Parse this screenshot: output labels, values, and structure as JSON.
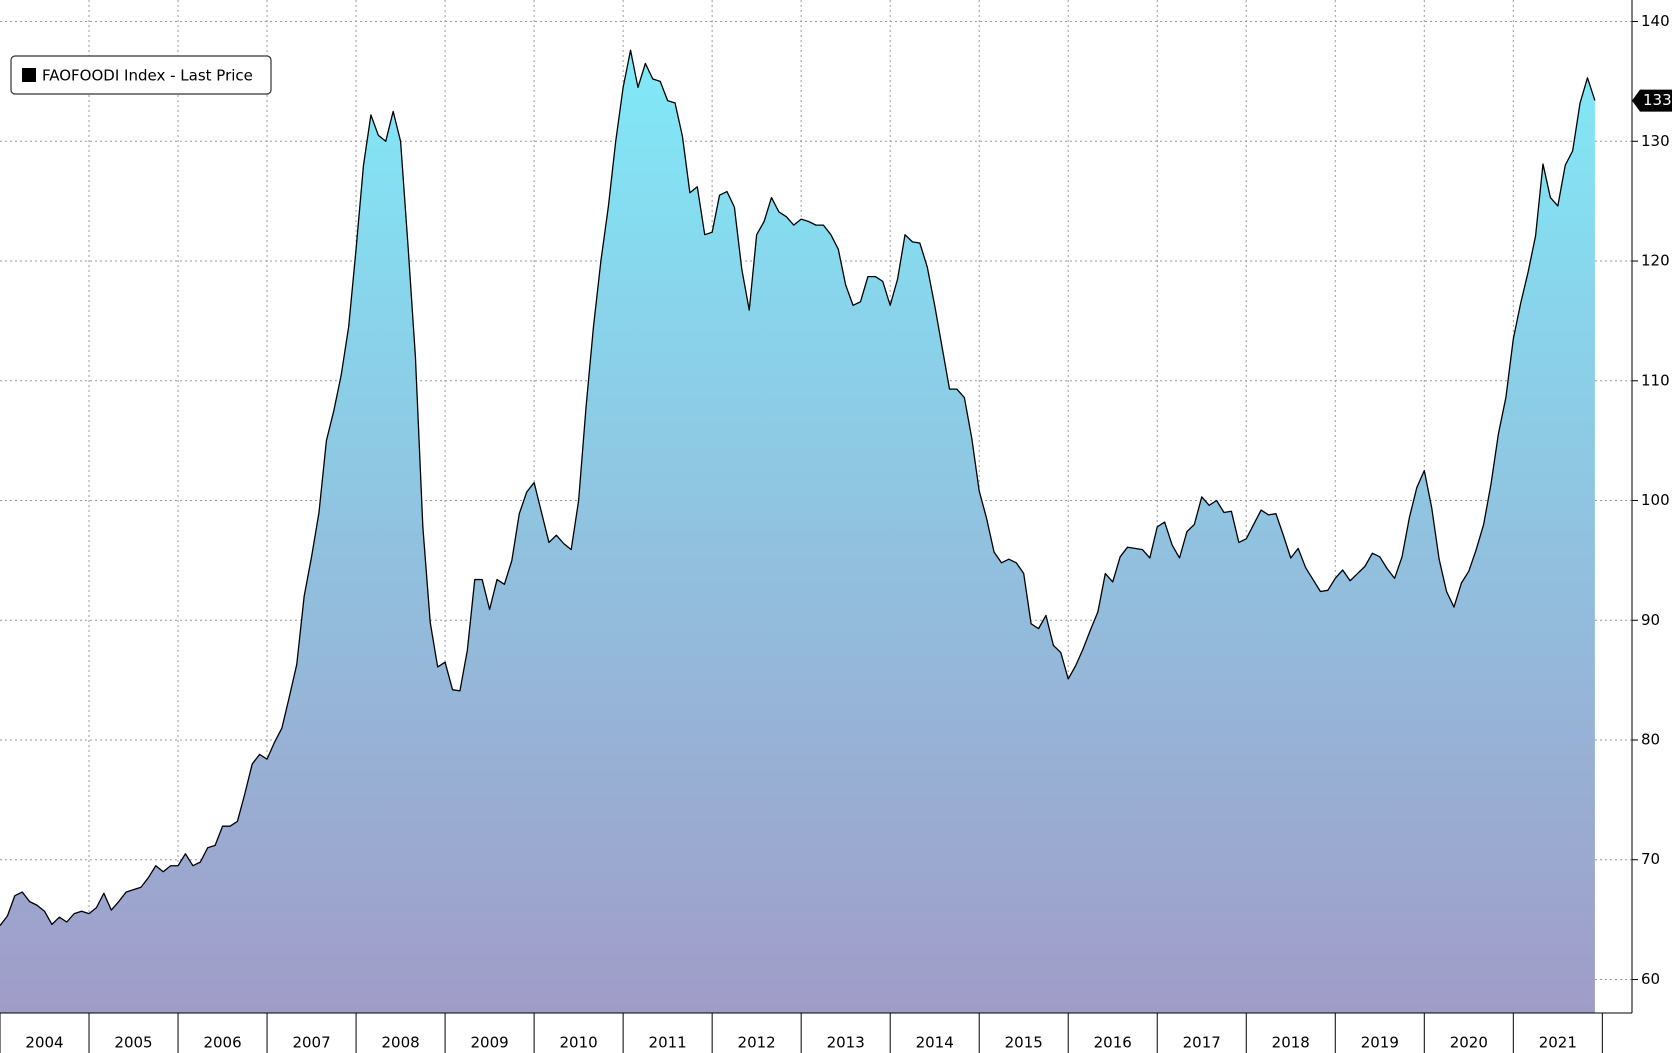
{
  "chart_data": {
    "type": "area",
    "legend": "top-left",
    "grid": true,
    "xlim": [
      "2004-01",
      "2022-05"
    ],
    "ylim": [
      57.2,
      141.8
    ],
    "yticks": [
      60,
      70,
      80,
      90,
      100,
      110,
      120,
      130,
      140
    ],
    "xticks": [
      2004,
      2005,
      2006,
      2007,
      2008,
      2009,
      2010,
      2011,
      2012,
      2013,
      2014,
      2015,
      2016,
      2017,
      2018,
      2019,
      2020,
      2021
    ],
    "last_price_label": "133",
    "start": "2004-01",
    "series": [
      {
        "name": "FAOFOODI Index - Last Price",
        "color": "#000000",
        "fill_top": "#80eaf8",
        "fill_bottom": "#a09cc8",
        "values": [
          64.5,
          65.3,
          67,
          67.3,
          66.5,
          66.2,
          65.7,
          64.6,
          65.2,
          64.8,
          65.5,
          65.7,
          65.5,
          66,
          67.2,
          65.8,
          66.5,
          67.3,
          67.5,
          67.7,
          68.5,
          69.5,
          69,
          69.5,
          69.5,
          70.5,
          69.5,
          69.8,
          71,
          71.2,
          72.8,
          72.8,
          73.2,
          75.5,
          78,
          78.8,
          78.4,
          79.8,
          81,
          83.6,
          86.3,
          92,
          95.3,
          99,
          105,
          107.5,
          110.5,
          114.5,
          121,
          128,
          132.2,
          130.5,
          130,
          132.5,
          130,
          121.3,
          112,
          97.8,
          89.8,
          86.1,
          86.5,
          84.2,
          84.1,
          87.5,
          93.4,
          93.4,
          90.9,
          93.4,
          93,
          95,
          98.9,
          100.7,
          101.5,
          99,
          96.5,
          97.1,
          96.4,
          95.9,
          100,
          107.8,
          114.5,
          120,
          124.5,
          130,
          134.5,
          137.6,
          134.5,
          136.5,
          135.2,
          135,
          133.4,
          133.2,
          130.4,
          125.7,
          126.2,
          122.2,
          122.4,
          125.5,
          125.8,
          124.5,
          119.3,
          115.9,
          122.2,
          123.3,
          125.3,
          124.1,
          123.7,
          123,
          123.5,
          123.3,
          123,
          123,
          122.2,
          121,
          118,
          116.3,
          116.6,
          118.7,
          118.7,
          118.3,
          116.3,
          118.5,
          122.2,
          121.6,
          121.5,
          119.5,
          116.3,
          112.8,
          109.3,
          109.3,
          108.6,
          105.2,
          100.8,
          98.5,
          95.7,
          94.8,
          95.1,
          94.8,
          93.9,
          89.7,
          89.3,
          90.4,
          87.9,
          87.3,
          85.1,
          86.2,
          87.6,
          89.2,
          90.7,
          93.9,
          93.2,
          95.3,
          96.1,
          96,
          95.9,
          95.2,
          97.8,
          98.2,
          96.3,
          95.2,
          97.4,
          98,
          100.3,
          99.6,
          100,
          99,
          99.1,
          96.5,
          96.8,
          98,
          99.2,
          98.8,
          98.9,
          97.1,
          95.2,
          96,
          94.4,
          93.4,
          92.4,
          92.5,
          93.5,
          94.2,
          93.3,
          93.9,
          94.5,
          95.6,
          95.3,
          94.3,
          93.5,
          95.3,
          98.6,
          101.1,
          102.5,
          99.4,
          95.1,
          92.4,
          91.1,
          93.1,
          94.1,
          95.9,
          98,
          101.4,
          105.6,
          108.6,
          113.5,
          116.5,
          119.1,
          122.1,
          128.1,
          125.3,
          124.6,
          128,
          129.2,
          133.2,
          135.3,
          133.4
        ]
      }
    ]
  }
}
